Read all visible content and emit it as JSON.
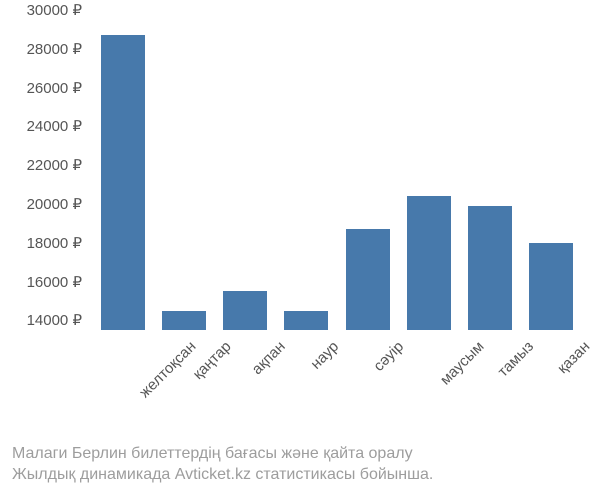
{
  "chart": {
    "type": "bar",
    "categories": [
      "желтоқсан",
      "қаңтар",
      "ақпан",
      "наур",
      "сәуір",
      "маусым",
      "тамыз",
      "қазан"
    ],
    "values": [
      28700,
      14500,
      15500,
      14500,
      18700,
      20400,
      19900,
      18000
    ],
    "bar_color": "#4779ab",
    "ylim": [
      13500,
      30000
    ],
    "yticks": [
      14000,
      16000,
      18000,
      20000,
      22000,
      24000,
      26000,
      28000,
      30000
    ],
    "ytick_labels": [
      "14000 ₽",
      "16000 ₽",
      "18000 ₽",
      "20000 ₽",
      "22000 ₽",
      "24000 ₽",
      "26000 ₽",
      "28000 ₽",
      "30000 ₽"
    ],
    "tick_color": "#555555",
    "tick_fontsize": 15,
    "background_color": "#ffffff"
  },
  "caption": {
    "line1": "Малаги Берлин билеттердің бағасы және қайта оралу",
    "line2": "Жылдық динамикада Avticket.kz статистикасы бойынша.",
    "color": "#9d9d9d",
    "fontsize": 16
  }
}
